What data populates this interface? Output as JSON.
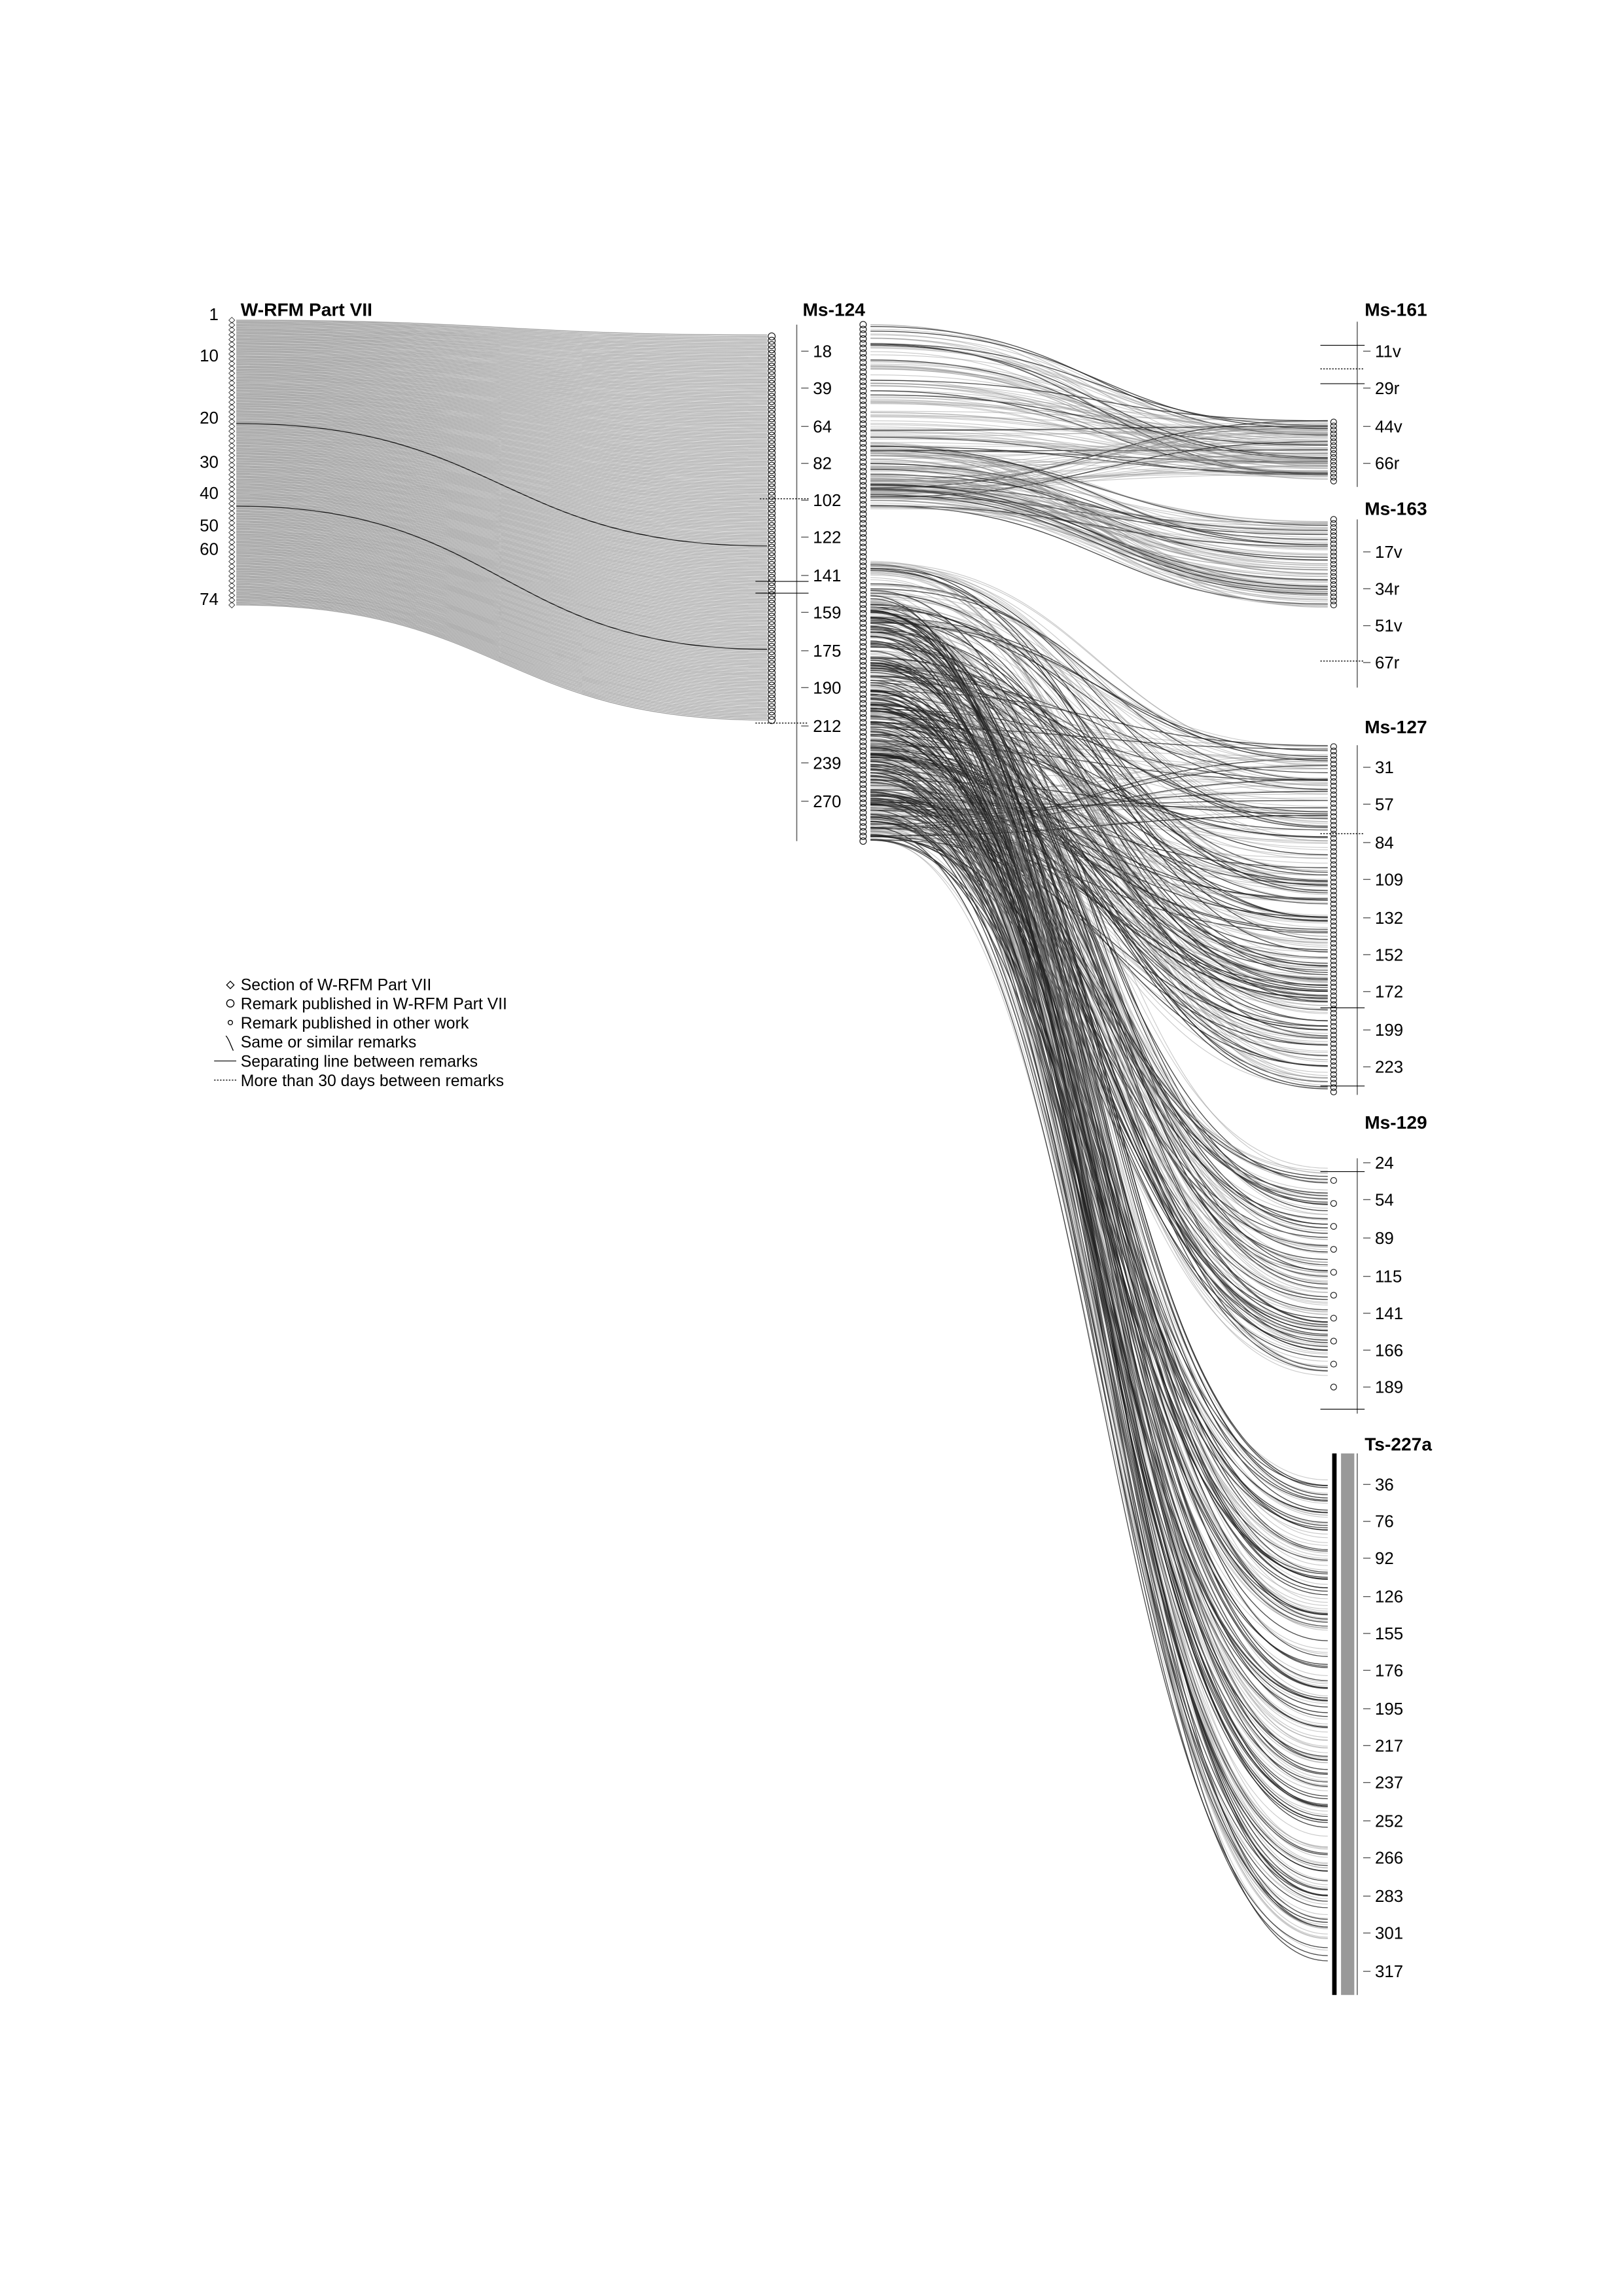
{
  "columns": [
    {
      "id": "wrfm",
      "title": "W-RFM Part VII",
      "ticks": [
        "1",
        "10",
        "20",
        "30",
        "40",
        "50",
        "60",
        "74"
      ]
    },
    {
      "id": "ms124",
      "title": "Ms-124",
      "ticks": [
        "18",
        "39",
        "64",
        "82",
        "102",
        "122",
        "141",
        "159",
        "175",
        "190",
        "212",
        "239",
        "270"
      ]
    },
    {
      "id": "ms161",
      "title": "Ms-161",
      "ticks": [
        "11v",
        "29r",
        "44v",
        "66r"
      ]
    },
    {
      "id": "ms163",
      "title": "Ms-163",
      "ticks": [
        "17v",
        "34r",
        "51v",
        "67r"
      ]
    },
    {
      "id": "ms127",
      "title": "Ms-127",
      "ticks": [
        "31",
        "57",
        "84",
        "109",
        "132",
        "152",
        "172",
        "199",
        "223"
      ]
    },
    {
      "id": "ms129",
      "title": "Ms-129",
      "ticks": [
        "24",
        "54",
        "89",
        "115",
        "141",
        "166",
        "189"
      ]
    },
    {
      "id": "ts227a",
      "title": "Ts-227a",
      "ticks": [
        "36",
        "76",
        "92",
        "126",
        "155",
        "176",
        "195",
        "217",
        "237",
        "252",
        "266",
        "283",
        "301",
        "317"
      ]
    }
  ],
  "legend": [
    {
      "symbol": "diamond",
      "label": "Section of W-RFM Part VII"
    },
    {
      "symbol": "circle-large",
      "label": "Remark published in W-RFM Part VII"
    },
    {
      "symbol": "circle-small",
      "label": "Remark published in other work"
    },
    {
      "symbol": "curve",
      "label": "Same or similar remarks"
    },
    {
      "symbol": "solid-line",
      "label": "Separating line between remarks"
    },
    {
      "symbol": "dotted-line",
      "label": "More than 30 days between remarks"
    }
  ],
  "colors": {
    "flow": "#808080",
    "flow_dark": "#222222",
    "axis": "#555555",
    "text": "#000000"
  }
}
